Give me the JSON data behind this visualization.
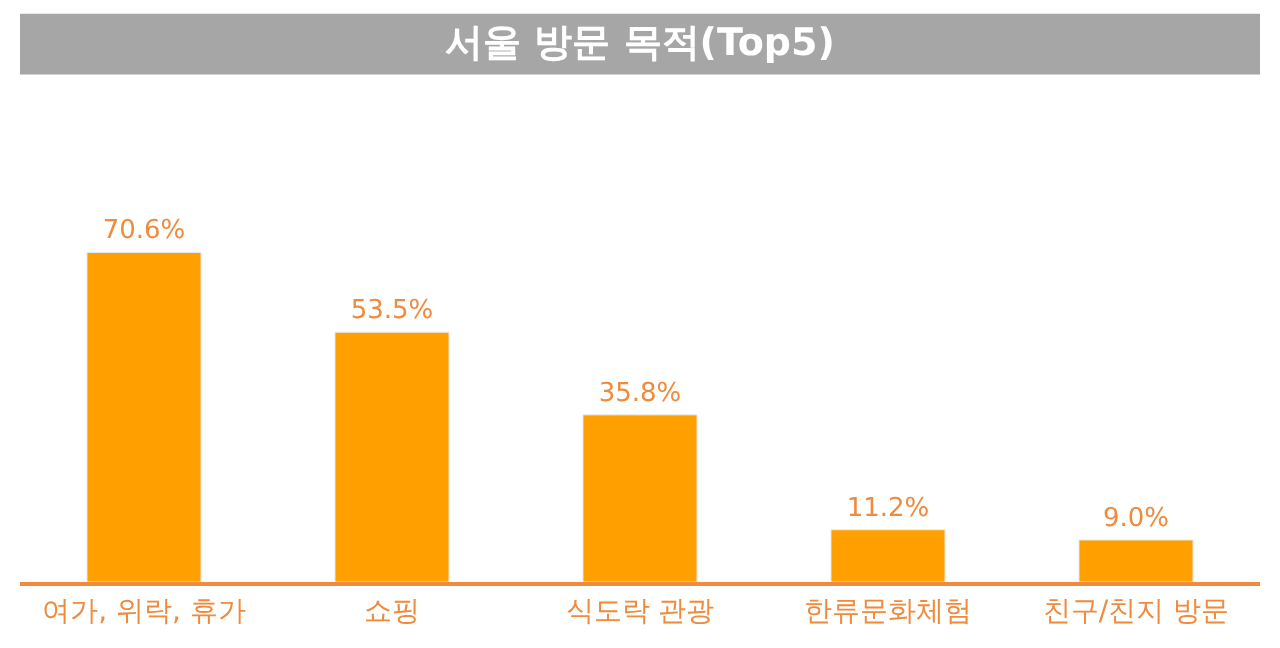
{
  "chart_data": {
    "type": "bar",
    "title": "서울 방문 목적(Top5)",
    "categories": [
      "여가, 위락, 휴가",
      "쇼핑",
      "식도락 관광",
      "한류문화체험",
      "친구/친지 방문"
    ],
    "values": [
      70.6,
      53.5,
      35.8,
      11.2,
      9.0
    ],
    "value_labels": [
      "70.6%",
      "53.5%",
      "35.8%",
      "11.2%",
      "9.0%"
    ],
    "color": "#ffa000"
  }
}
